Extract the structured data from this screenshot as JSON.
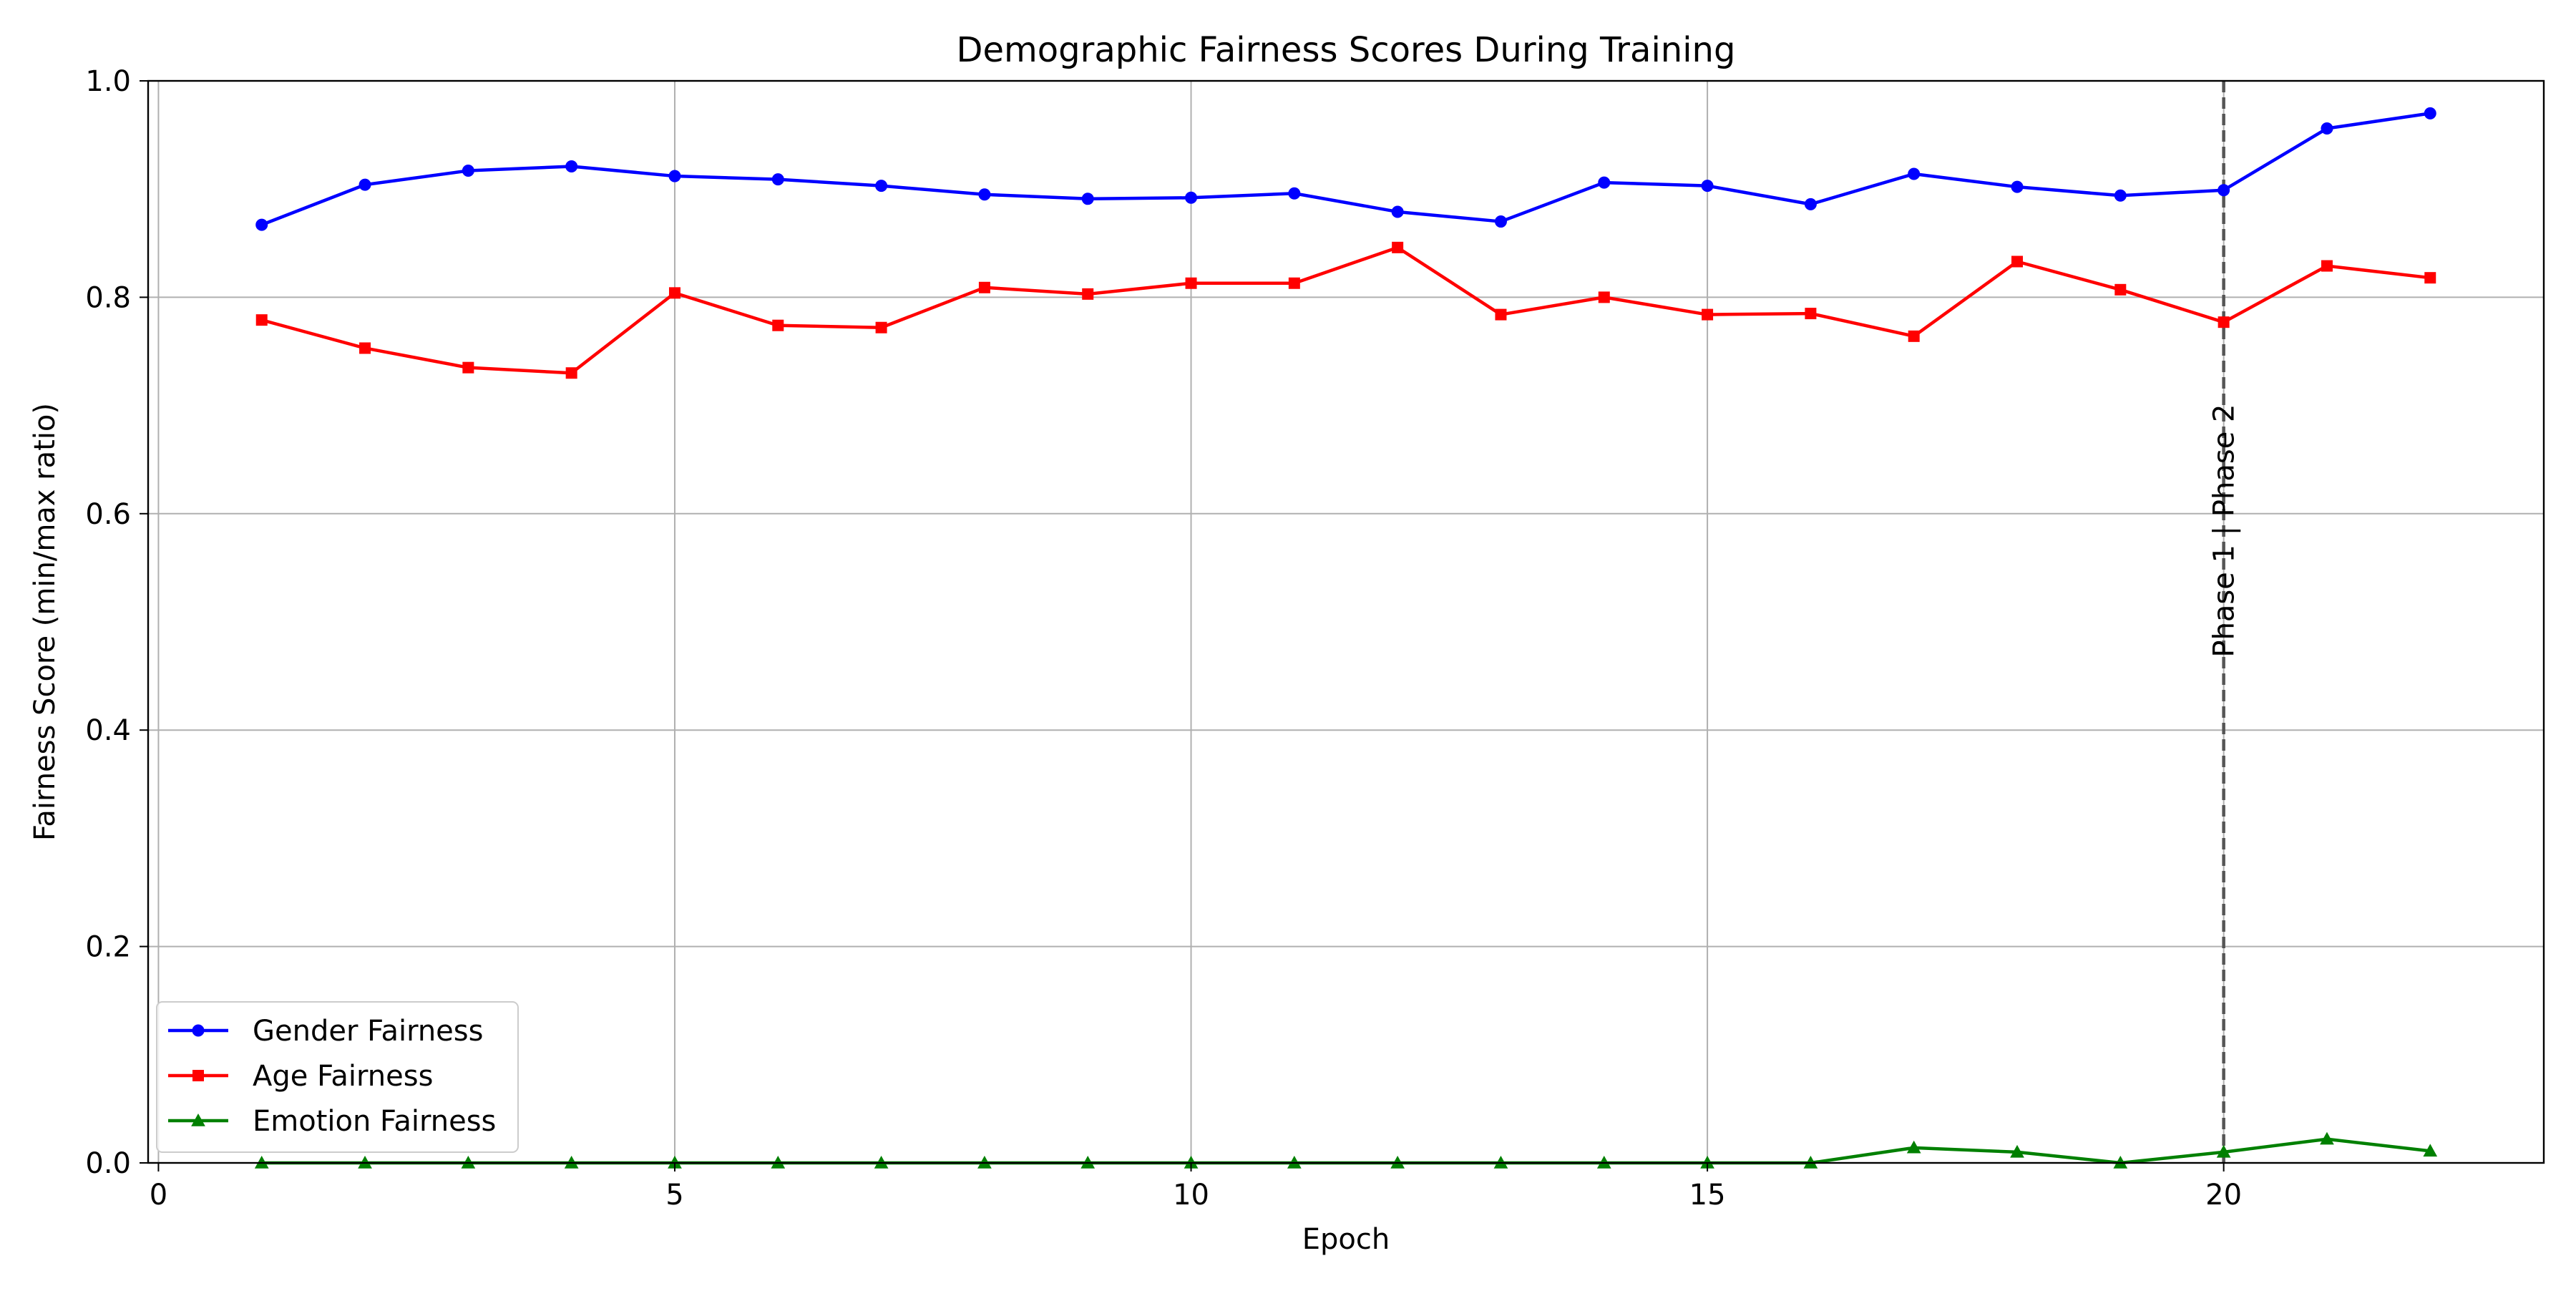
{
  "chart_data": {
    "type": "line",
    "title": "Demographic Fairness Scores During Training",
    "xlabel": "Epoch",
    "ylabel": "Fairness Score (min/max ratio)",
    "xlim": [
      -0.1,
      23.1
    ],
    "ylim": [
      0.0,
      1.0
    ],
    "xticks": [
      0,
      5,
      10,
      15,
      20
    ],
    "yticks": [
      0.0,
      0.2,
      0.4,
      0.6,
      0.8,
      1.0
    ],
    "grid": true,
    "legend_position": "lower-left",
    "x": [
      1,
      2,
      3,
      4,
      5,
      6,
      7,
      8,
      9,
      10,
      11,
      12,
      13,
      14,
      15,
      16,
      17,
      18,
      19,
      20,
      21,
      22
    ],
    "series": [
      {
        "name": "Gender Fairness",
        "color": "#0000ff",
        "marker": "circle",
        "values": [
          0.867,
          0.904,
          0.917,
          0.921,
          0.912,
          0.909,
          0.903,
          0.895,
          0.891,
          0.892,
          0.896,
          0.879,
          0.87,
          0.906,
          0.903,
          0.886,
          0.914,
          0.902,
          0.894,
          0.899,
          0.956,
          0.97
        ]
      },
      {
        "name": "Age Fairness",
        "color": "#ff0000",
        "marker": "square",
        "values": [
          0.779,
          0.753,
          0.735,
          0.73,
          0.804,
          0.774,
          0.772,
          0.809,
          0.803,
          0.813,
          0.813,
          0.846,
          0.784,
          0.8,
          0.784,
          0.785,
          0.764,
          0.833,
          0.807,
          0.777,
          0.829,
          0.818
        ]
      },
      {
        "name": "Emotion Fairness",
        "color": "#008000",
        "marker": "triangle",
        "values": [
          0.0,
          0.0,
          0.0,
          0.0,
          0.0,
          0.0,
          0.0,
          0.0,
          0.0,
          0.0,
          0.0,
          0.0,
          0.0,
          0.0,
          0.0,
          0.0,
          0.014,
          0.01,
          0.0,
          0.01,
          0.022,
          0.011
        ]
      }
    ],
    "annotations": [
      {
        "type": "vline",
        "x": 20,
        "style": "dashed",
        "color": "#555555",
        "label": "Phase 1 | Phase 2"
      }
    ]
  }
}
